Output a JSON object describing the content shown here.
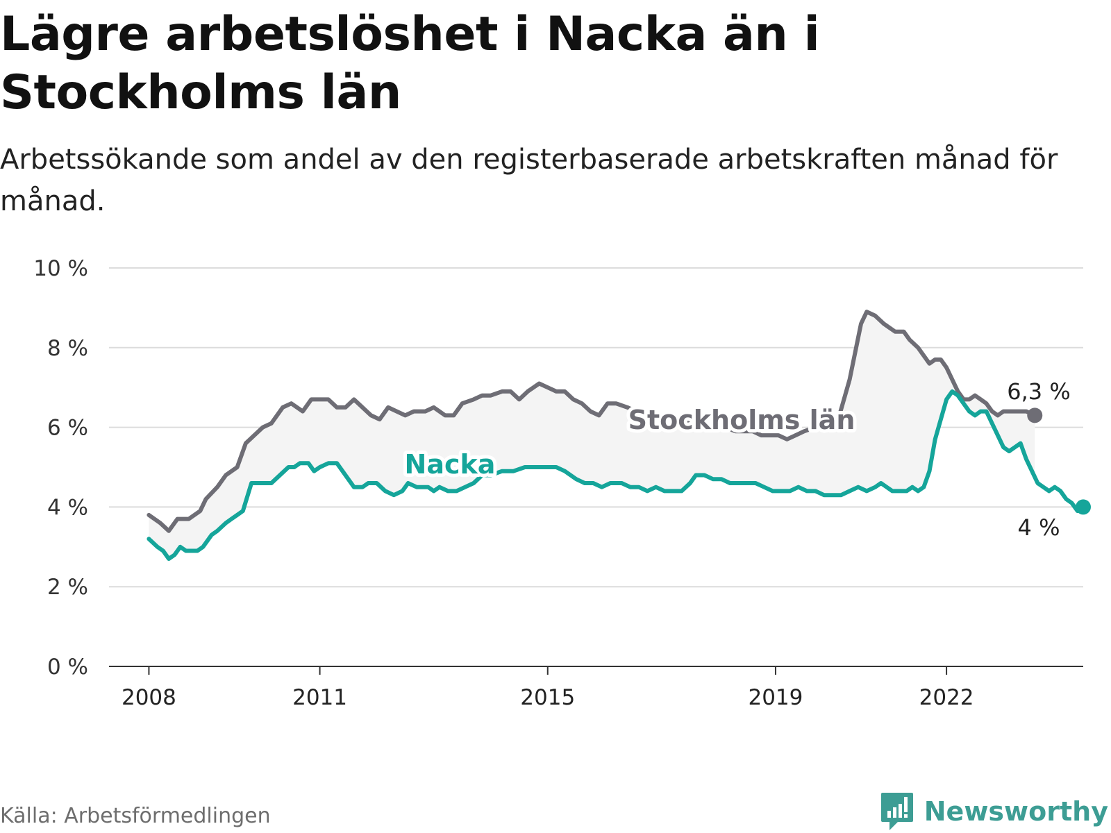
{
  "title": "Lägre arbetslöshet i Nacka än i Stockholms län",
  "subtitle": "Arbetssökande som andel av den registerbaserade arbetskraften månad för månad.",
  "source": "Källa: Arbetsförmedlingen",
  "brand": {
    "name": "Newsworthy",
    "icon": "newsworthy-logo-icon",
    "color": "#3d9d94"
  },
  "chart_data": {
    "type": "line",
    "title": "Lägre arbetslöshet i Nacka än i Stockholms län",
    "xlabel": "",
    "ylabel": "",
    "xlim": [
      2007.3,
      2024.4
    ],
    "ylim": [
      0,
      10
    ],
    "grid": true,
    "y_ticks": [
      {
        "value": 0,
        "label": "0 %"
      },
      {
        "value": 2,
        "label": "2 %"
      },
      {
        "value": 4,
        "label": "4 %"
      },
      {
        "value": 6,
        "label": "6 %"
      },
      {
        "value": 8,
        "label": "8 %"
      },
      {
        "value": 10,
        "label": "10 %"
      }
    ],
    "x_ticks": [
      {
        "value": 2008,
        "label": "2008"
      },
      {
        "value": 2011,
        "label": "2011"
      },
      {
        "value": 2015,
        "label": "2015"
      },
      {
        "value": 2019,
        "label": "2019"
      },
      {
        "value": 2022,
        "label": "2022"
      }
    ],
    "series": [
      {
        "name": "Stockholms län",
        "color": "#6e6d75",
        "end_label": "6,3 %",
        "points": [
          [
            2008.0,
            3.8
          ],
          [
            2008.2,
            3.6
          ],
          [
            2008.35,
            3.4
          ],
          [
            2008.5,
            3.7
          ],
          [
            2008.7,
            3.7
          ],
          [
            2008.9,
            3.9
          ],
          [
            2009.0,
            4.2
          ],
          [
            2009.2,
            4.5
          ],
          [
            2009.35,
            4.8
          ],
          [
            2009.55,
            5.0
          ],
          [
            2009.7,
            5.6
          ],
          [
            2009.85,
            5.8
          ],
          [
            2010.0,
            6.0
          ],
          [
            2010.15,
            6.1
          ],
          [
            2010.35,
            6.5
          ],
          [
            2010.5,
            6.6
          ],
          [
            2010.7,
            6.4
          ],
          [
            2010.85,
            6.7
          ],
          [
            2011.0,
            6.7
          ],
          [
            2011.15,
            6.7
          ],
          [
            2011.3,
            6.5
          ],
          [
            2011.45,
            6.5
          ],
          [
            2011.6,
            6.7
          ],
          [
            2011.75,
            6.5
          ],
          [
            2011.9,
            6.3
          ],
          [
            2012.05,
            6.2
          ],
          [
            2012.2,
            6.5
          ],
          [
            2012.35,
            6.4
          ],
          [
            2012.5,
            6.3
          ],
          [
            2012.65,
            6.4
          ],
          [
            2012.85,
            6.4
          ],
          [
            2013.0,
            6.5
          ],
          [
            2013.2,
            6.3
          ],
          [
            2013.35,
            6.3
          ],
          [
            2013.5,
            6.6
          ],
          [
            2013.7,
            6.7
          ],
          [
            2013.85,
            6.8
          ],
          [
            2014.0,
            6.8
          ],
          [
            2014.2,
            6.9
          ],
          [
            2014.35,
            6.9
          ],
          [
            2014.5,
            6.7
          ],
          [
            2014.65,
            6.9
          ],
          [
            2014.85,
            7.1
          ],
          [
            2015.0,
            7.0
          ],
          [
            2015.15,
            6.9
          ],
          [
            2015.3,
            6.9
          ],
          [
            2015.45,
            6.7
          ],
          [
            2015.6,
            6.6
          ],
          [
            2015.75,
            6.4
          ],
          [
            2015.9,
            6.3
          ],
          [
            2016.05,
            6.6
          ],
          [
            2016.2,
            6.6
          ],
          [
            2016.4,
            6.5
          ],
          [
            2016.55,
            6.4
          ],
          [
            2016.7,
            6.4
          ],
          [
            2016.85,
            6.3
          ],
          [
            2017.0,
            6.3
          ],
          [
            2017.15,
            6.2
          ],
          [
            2017.35,
            6.2
          ],
          [
            2017.5,
            6.1
          ],
          [
            2017.7,
            6.0
          ],
          [
            2017.9,
            6.0
          ],
          [
            2018.1,
            6.0
          ],
          [
            2018.3,
            5.9
          ],
          [
            2018.45,
            5.9
          ],
          [
            2018.6,
            5.9
          ],
          [
            2018.75,
            5.8
          ],
          [
            2018.9,
            5.8
          ],
          [
            2019.05,
            5.8
          ],
          [
            2019.2,
            5.7
          ],
          [
            2019.35,
            5.8
          ],
          [
            2019.5,
            5.9
          ],
          [
            2019.7,
            6.0
          ],
          [
            2019.85,
            6.1
          ],
          [
            2019.95,
            6.2
          ],
          [
            2020.1,
            6.2
          ],
          [
            2020.2,
            6.7
          ],
          [
            2020.3,
            7.2
          ],
          [
            2020.4,
            7.9
          ],
          [
            2020.5,
            8.6
          ],
          [
            2020.6,
            8.9
          ],
          [
            2020.75,
            8.8
          ],
          [
            2020.9,
            8.6
          ],
          [
            2021.0,
            8.5
          ],
          [
            2021.1,
            8.4
          ],
          [
            2021.25,
            8.4
          ],
          [
            2021.35,
            8.2
          ],
          [
            2021.5,
            8.0
          ],
          [
            2021.6,
            7.8
          ],
          [
            2021.7,
            7.6
          ],
          [
            2021.8,
            7.7
          ],
          [
            2021.9,
            7.7
          ],
          [
            2022.0,
            7.5
          ],
          [
            2022.1,
            7.2
          ],
          [
            2022.2,
            6.9
          ],
          [
            2022.3,
            6.7
          ],
          [
            2022.4,
            6.7
          ],
          [
            2022.5,
            6.8
          ],
          [
            2022.6,
            6.7
          ],
          [
            2022.7,
            6.6
          ],
          [
            2022.8,
            6.4
          ],
          [
            2022.9,
            6.3
          ],
          [
            2023.0,
            6.4
          ],
          [
            2023.2,
            6.4
          ],
          [
            2023.4,
            6.4
          ],
          [
            2023.55,
            6.3
          ]
        ]
      },
      {
        "name": "Nacka",
        "color": "#15a59a",
        "end_label": "4 %",
        "points": [
          [
            2008.0,
            3.2
          ],
          [
            2008.15,
            3.0
          ],
          [
            2008.25,
            2.9
          ],
          [
            2008.35,
            2.7
          ],
          [
            2008.45,
            2.8
          ],
          [
            2008.55,
            3.0
          ],
          [
            2008.65,
            2.9
          ],
          [
            2008.85,
            2.9
          ],
          [
            2008.95,
            3.0
          ],
          [
            2009.1,
            3.3
          ],
          [
            2009.2,
            3.4
          ],
          [
            2009.35,
            3.6
          ],
          [
            2009.45,
            3.7
          ],
          [
            2009.55,
            3.8
          ],
          [
            2009.65,
            3.9
          ],
          [
            2009.8,
            4.6
          ],
          [
            2010.0,
            4.6
          ],
          [
            2010.15,
            4.6
          ],
          [
            2010.3,
            4.8
          ],
          [
            2010.45,
            5.0
          ],
          [
            2010.55,
            5.0
          ],
          [
            2010.65,
            5.1
          ],
          [
            2010.8,
            5.1
          ],
          [
            2010.9,
            4.9
          ],
          [
            2011.0,
            5.0
          ],
          [
            2011.15,
            5.1
          ],
          [
            2011.3,
            5.1
          ],
          [
            2011.45,
            4.8
          ],
          [
            2011.6,
            4.5
          ],
          [
            2011.75,
            4.5
          ],
          [
            2011.85,
            4.6
          ],
          [
            2012.0,
            4.6
          ],
          [
            2012.15,
            4.4
          ],
          [
            2012.3,
            4.3
          ],
          [
            2012.45,
            4.4
          ],
          [
            2012.55,
            4.6
          ],
          [
            2012.7,
            4.5
          ],
          [
            2012.9,
            4.5
          ],
          [
            2013.0,
            4.4
          ],
          [
            2013.1,
            4.5
          ],
          [
            2013.25,
            4.4
          ],
          [
            2013.4,
            4.4
          ],
          [
            2013.55,
            4.5
          ],
          [
            2013.7,
            4.6
          ],
          [
            2013.85,
            4.8
          ],
          [
            2014.0,
            4.8
          ],
          [
            2014.2,
            4.9
          ],
          [
            2014.4,
            4.9
          ],
          [
            2014.6,
            5.0
          ],
          [
            2014.8,
            5.0
          ],
          [
            2015.0,
            5.0
          ],
          [
            2015.15,
            5.0
          ],
          [
            2015.3,
            4.9
          ],
          [
            2015.5,
            4.7
          ],
          [
            2015.65,
            4.6
          ],
          [
            2015.8,
            4.6
          ],
          [
            2015.95,
            4.5
          ],
          [
            2016.1,
            4.6
          ],
          [
            2016.3,
            4.6
          ],
          [
            2016.45,
            4.5
          ],
          [
            2016.6,
            4.5
          ],
          [
            2016.75,
            4.4
          ],
          [
            2016.9,
            4.5
          ],
          [
            2017.05,
            4.4
          ],
          [
            2017.2,
            4.4
          ],
          [
            2017.35,
            4.4
          ],
          [
            2017.5,
            4.6
          ],
          [
            2017.6,
            4.8
          ],
          [
            2017.75,
            4.8
          ],
          [
            2017.9,
            4.7
          ],
          [
            2018.05,
            4.7
          ],
          [
            2018.2,
            4.6
          ],
          [
            2018.35,
            4.6
          ],
          [
            2018.5,
            4.6
          ],
          [
            2018.65,
            4.6
          ],
          [
            2018.8,
            4.5
          ],
          [
            2018.95,
            4.4
          ],
          [
            2019.1,
            4.4
          ],
          [
            2019.25,
            4.4
          ],
          [
            2019.4,
            4.5
          ],
          [
            2019.55,
            4.4
          ],
          [
            2019.7,
            4.4
          ],
          [
            2019.85,
            4.3
          ],
          [
            2020.0,
            4.3
          ],
          [
            2020.15,
            4.3
          ],
          [
            2020.3,
            4.4
          ],
          [
            2020.45,
            4.5
          ],
          [
            2020.6,
            4.4
          ],
          [
            2020.75,
            4.5
          ],
          [
            2020.85,
            4.6
          ],
          [
            2020.95,
            4.5
          ],
          [
            2021.05,
            4.4
          ],
          [
            2021.15,
            4.4
          ],
          [
            2021.3,
            4.4
          ],
          [
            2021.4,
            4.5
          ],
          [
            2021.5,
            4.4
          ],
          [
            2021.6,
            4.5
          ],
          [
            2021.7,
            4.9
          ],
          [
            2021.8,
            5.7
          ],
          [
            2021.9,
            6.2
          ],
          [
            2022.0,
            6.7
          ],
          [
            2022.1,
            6.9
          ],
          [
            2022.2,
            6.8
          ],
          [
            2022.3,
            6.6
          ],
          [
            2022.4,
            6.4
          ],
          [
            2022.5,
            6.3
          ],
          [
            2022.6,
            6.4
          ],
          [
            2022.7,
            6.4
          ],
          [
            2022.8,
            6.1
          ],
          [
            2022.9,
            5.8
          ],
          [
            2023.0,
            5.5
          ],
          [
            2023.1,
            5.4
          ],
          [
            2023.2,
            5.5
          ],
          [
            2023.3,
            5.6
          ],
          [
            2023.4,
            5.2
          ],
          [
            2023.5,
            4.9
          ],
          [
            2023.6,
            4.6
          ],
          [
            2023.7,
            4.5
          ],
          [
            2023.8,
            4.4
          ],
          [
            2023.9,
            4.5
          ],
          [
            2024.0,
            4.4
          ],
          [
            2024.1,
            4.2
          ],
          [
            2024.2,
            4.1
          ],
          [
            2024.3,
            3.9
          ],
          [
            2024.4,
            4.0
          ]
        ]
      }
    ]
  }
}
